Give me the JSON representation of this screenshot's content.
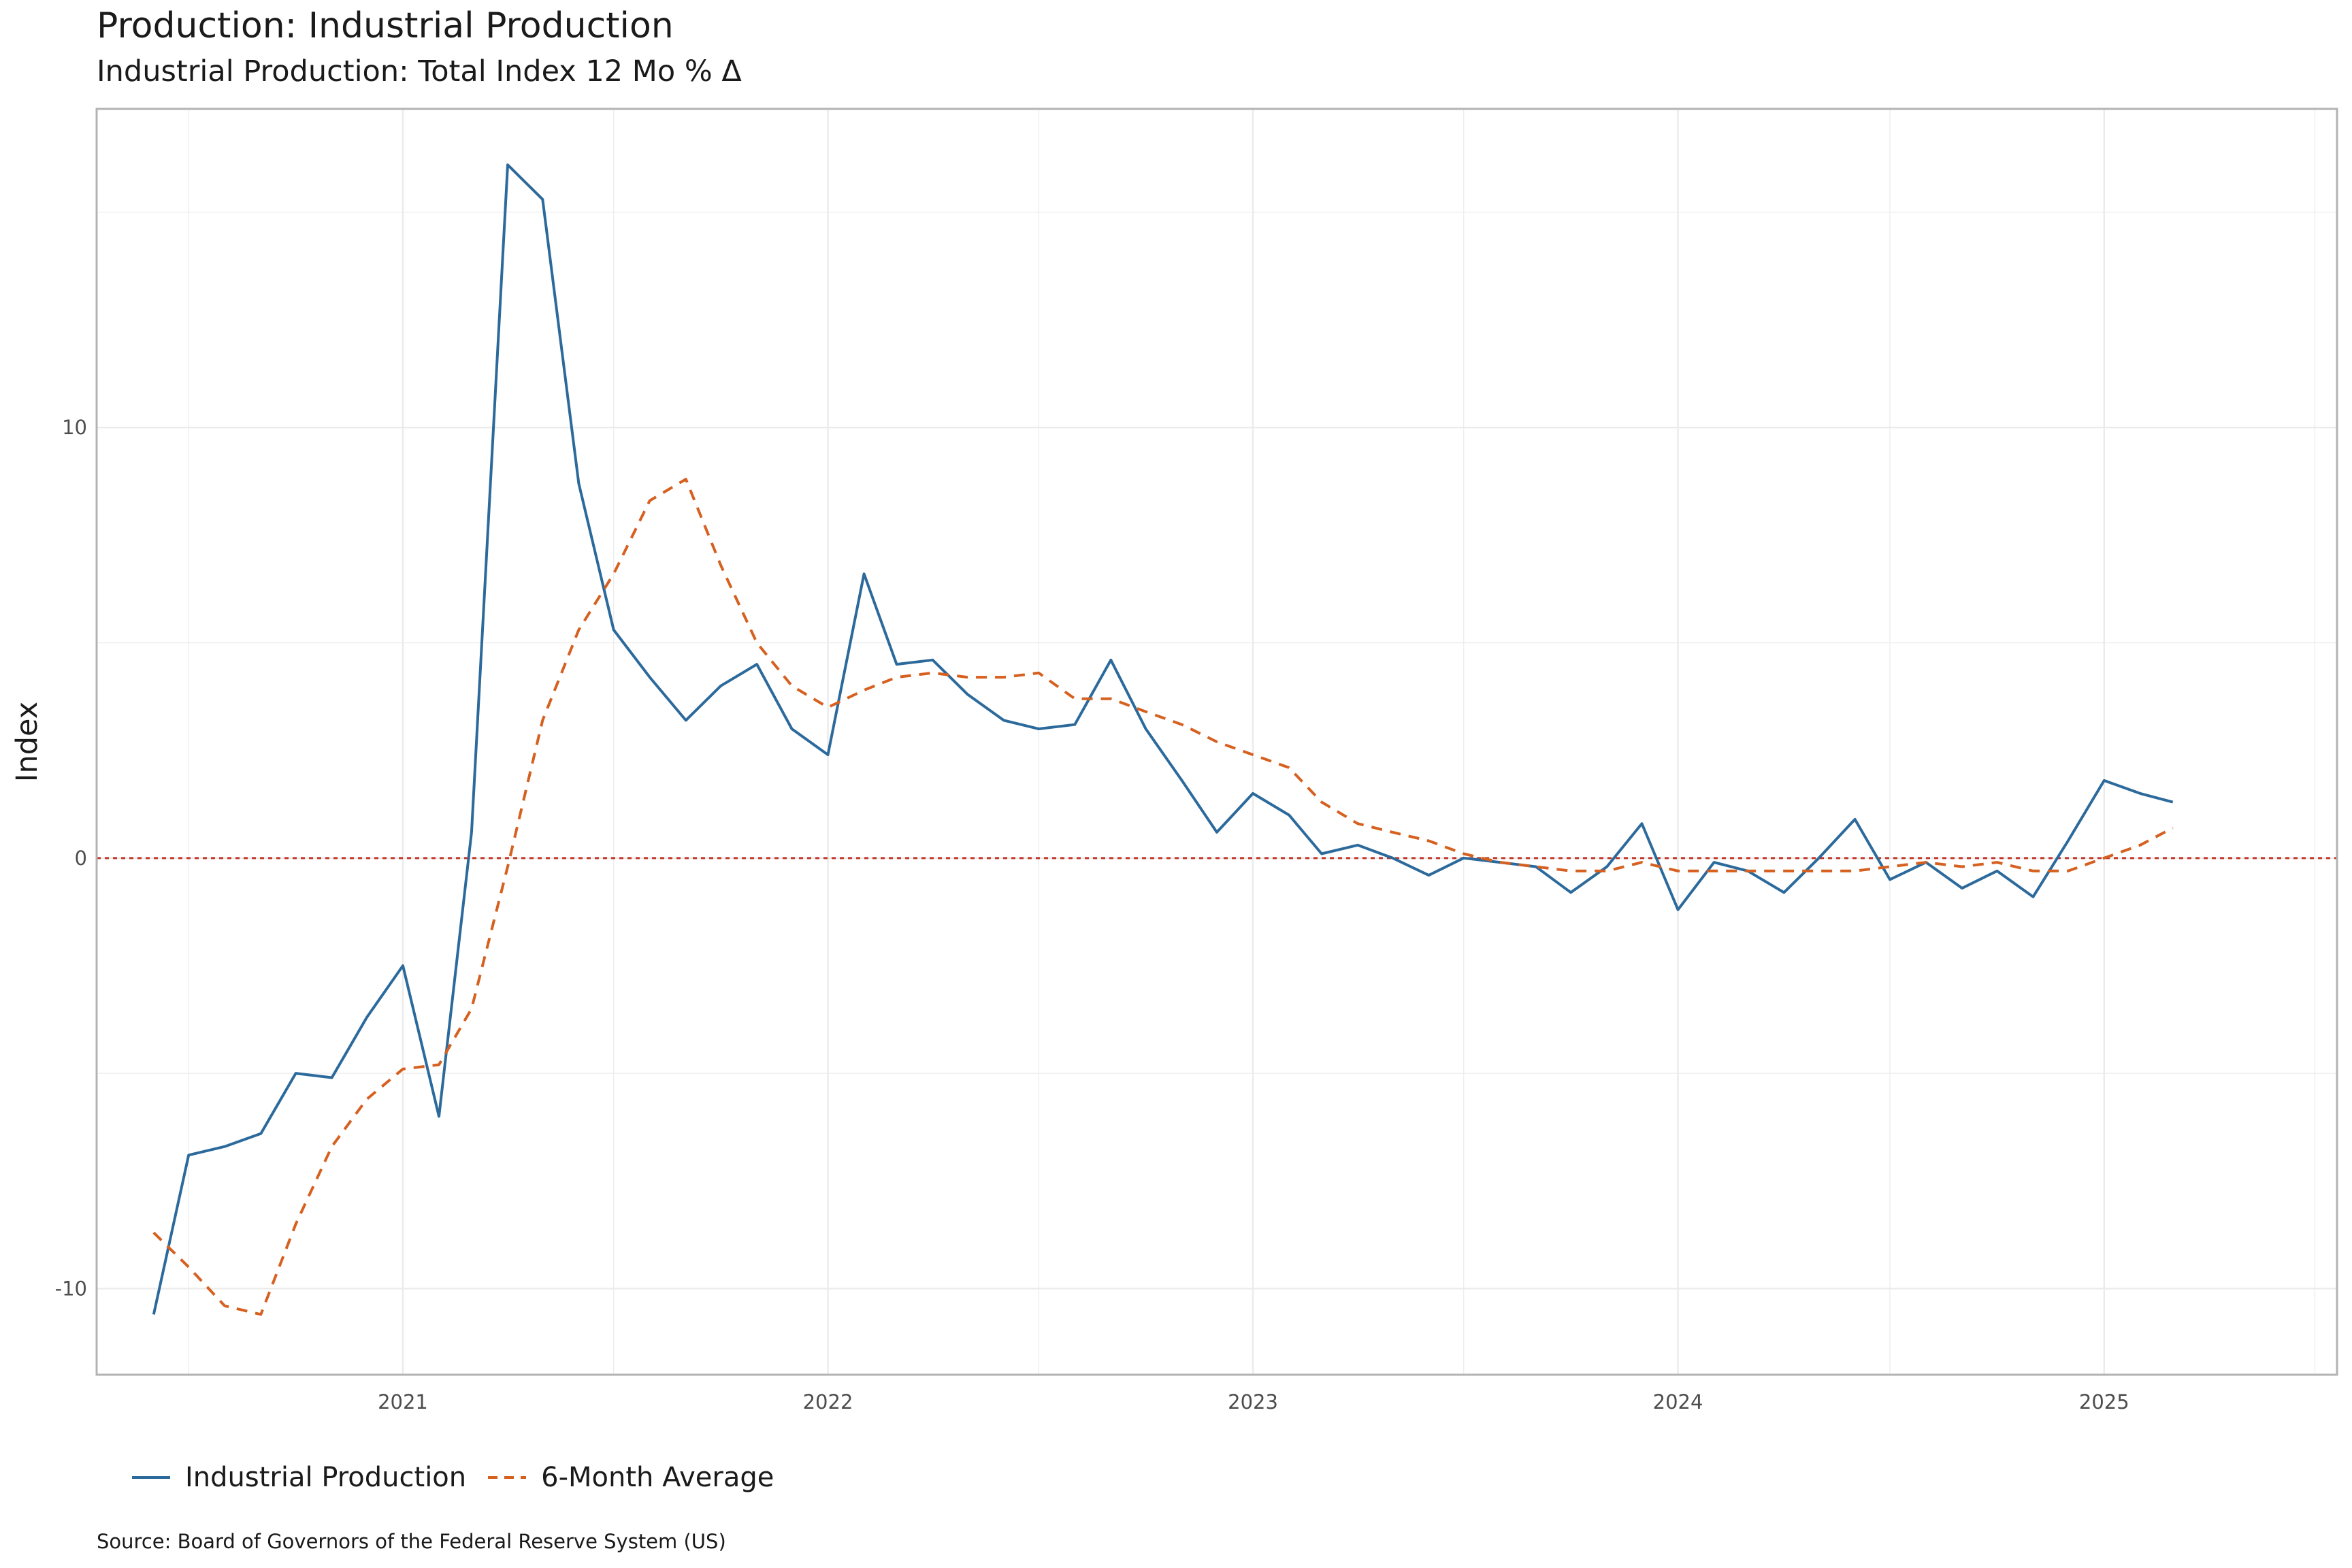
{
  "header": {
    "title": "Production: Industrial Production",
    "subtitle": "Industrial Production: Total Index 12 Mo % Δ"
  },
  "caption": "Source:  Board of Governors of the Federal Reserve System (US)",
  "colors": {
    "industrial_production": "#2c6a9c",
    "six_month_average": "#d6601f",
    "zero_line": "#c0392b",
    "grid": "#ebebeb",
    "panel_border": "#b3b3b3"
  },
  "chart_data": {
    "type": "line",
    "ylabel": "Index",
    "xlabel": "",
    "x_ticks": [
      "2021",
      "2022",
      "2023",
      "2024",
      "2025"
    ],
    "y_ticks": [
      -10,
      0,
      10
    ],
    "xlim": [
      "2020-04-13",
      "2025-07-20"
    ],
    "ylim": [
      -12,
      17.4
    ],
    "zero_line": 0,
    "legend_position": "bottom-left",
    "x": [
      "2020-06",
      "2020-07",
      "2020-08",
      "2020-09",
      "2020-10",
      "2020-11",
      "2020-12",
      "2021-01",
      "2021-02",
      "2021-03",
      "2021-04",
      "2021-05",
      "2021-06",
      "2021-07",
      "2021-08",
      "2021-09",
      "2021-10",
      "2021-11",
      "2021-12",
      "2022-01",
      "2022-02",
      "2022-03",
      "2022-04",
      "2022-05",
      "2022-06",
      "2022-07",
      "2022-08",
      "2022-09",
      "2022-10",
      "2022-11",
      "2022-12",
      "2023-01",
      "2023-02",
      "2023-03",
      "2023-04",
      "2023-05",
      "2023-06",
      "2023-07",
      "2023-08",
      "2023-09",
      "2023-10",
      "2023-11",
      "2023-12",
      "2024-01",
      "2024-02",
      "2024-03",
      "2024-04",
      "2024-05",
      "2024-06",
      "2024-07",
      "2024-08",
      "2024-09",
      "2024-10",
      "2024-11",
      "2024-12",
      "2025-01",
      "2025-02",
      "2025-03"
    ],
    "series": [
      {
        "name": "Industrial Production",
        "style": "solid",
        "values": [
          -10.6,
          -6.9,
          -6.7,
          -6.4,
          -5.0,
          -5.1,
          -3.7,
          -2.5,
          -6.0,
          0.6,
          16.1,
          15.3,
          8.7,
          5.3,
          4.2,
          3.2,
          4.0,
          4.5,
          3.0,
          2.4,
          6.6,
          4.5,
          4.6,
          3.8,
          3.2,
          3.0,
          3.1,
          4.6,
          3.0,
          1.8,
          0.6,
          1.5,
          1.0,
          0.1,
          0.3,
          0.0,
          -0.4,
          0.0,
          -0.1,
          -0.2,
          -0.8,
          -0.2,
          0.8,
          -1.2,
          -0.1,
          -0.3,
          -0.8,
          0.0,
          0.9,
          -0.5,
          -0.1,
          -0.7,
          -0.3,
          -0.9,
          0.4,
          1.8,
          1.5,
          1.3
        ]
      },
      {
        "name": "6-Month Average",
        "style": "dashed",
        "values": [
          -8.7,
          -9.5,
          -10.4,
          -10.6,
          -8.5,
          -6.7,
          -5.6,
          -4.9,
          -4.8,
          -3.5,
          -0.2,
          3.2,
          5.3,
          6.6,
          8.3,
          8.8,
          6.8,
          5.0,
          4.0,
          3.5,
          3.9,
          4.2,
          4.3,
          4.2,
          4.2,
          4.3,
          3.7,
          3.7,
          3.4,
          3.1,
          2.7,
          2.4,
          2.1,
          1.3,
          0.8,
          0.6,
          0.4,
          0.1,
          -0.1,
          -0.2,
          -0.3,
          -0.3,
          -0.1,
          -0.3,
          -0.3,
          -0.3,
          -0.3,
          -0.3,
          -0.3,
          -0.2,
          -0.1,
          -0.2,
          -0.1,
          -0.3,
          -0.3,
          0.0,
          0.3,
          0.7
        ]
      }
    ]
  }
}
